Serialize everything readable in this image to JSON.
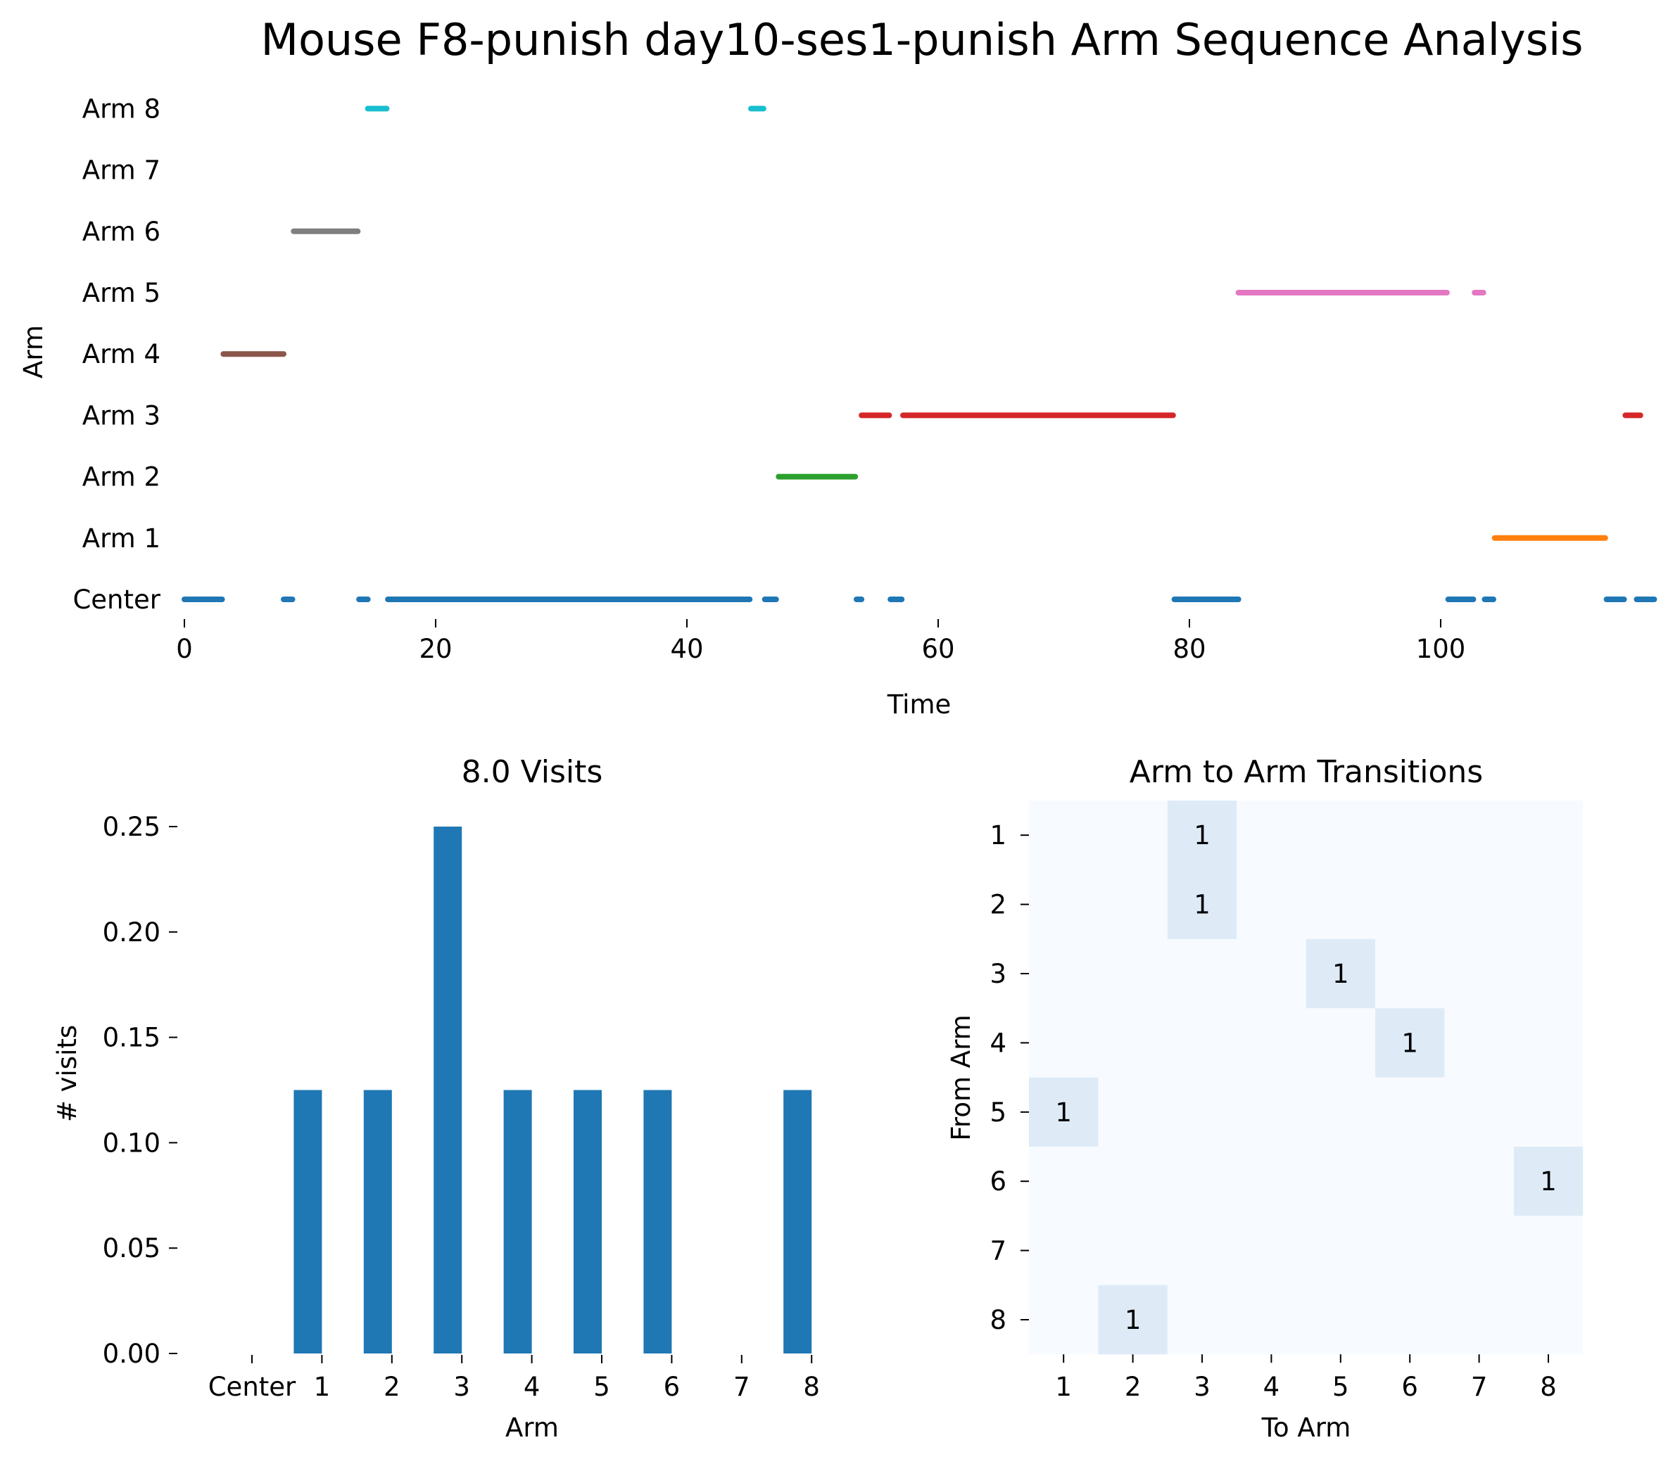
{
  "page_title": "Mouse F8-punish day10-ses1-punish Arm Sequence Analysis",
  "chart_data": [
    {
      "type": "line",
      "name": "arm-sequence-timeline",
      "xlabel": "Time",
      "ylabel": "Arm",
      "xlim": [
        0,
        117
      ],
      "xticks": [
        0,
        20,
        40,
        60,
        80,
        100
      ],
      "categories": [
        "Center",
        "Arm 1",
        "Arm 2",
        "Arm 3",
        "Arm 4",
        "Arm 5",
        "Arm 6",
        "Arm 7",
        "Arm 8"
      ],
      "grid": false,
      "series": [
        {
          "arm": "Center",
          "color": "#1f77b4",
          "segments": [
            [
              0,
              3
            ],
            [
              7.9,
              8.6
            ],
            [
              13.9,
              14.6
            ],
            [
              16.2,
              45
            ],
            [
              46.2,
              47.1
            ],
            [
              53.5,
              53.9
            ],
            [
              56.2,
              57.1
            ],
            [
              78.8,
              83.9
            ],
            [
              100.6,
              102.6
            ],
            [
              103.5,
              104.2
            ],
            [
              113.2,
              114.6
            ],
            [
              115.6,
              117
            ]
          ]
        },
        {
          "arm": "Arm 1",
          "color": "#ff7f0e",
          "segments": [
            [
              104.3,
              113.1
            ]
          ]
        },
        {
          "arm": "Arm 2",
          "color": "#2ca02c",
          "segments": [
            [
              47.3,
              53.4
            ]
          ]
        },
        {
          "arm": "Arm 3",
          "color": "#d62728",
          "segments": [
            [
              53.9,
              56.1
            ],
            [
              57.2,
              78.7
            ],
            [
              114.7,
              115.9
            ]
          ]
        },
        {
          "arm": "Arm 4",
          "color": "#8c564b",
          "segments": [
            [
              3.1,
              7.9
            ]
          ]
        },
        {
          "arm": "Arm 5",
          "color": "#e377c2",
          "segments": [
            [
              83.9,
              100.5
            ],
            [
              102.7,
              103.4
            ]
          ]
        },
        {
          "arm": "Arm 6",
          "color": "#7f7f7f",
          "segments": [
            [
              8.7,
              13.8
            ]
          ]
        },
        {
          "arm": "Arm 7",
          "color": "#bcbd22",
          "segments": []
        },
        {
          "arm": "Arm 8",
          "color": "#17becf",
          "segments": [
            [
              14.6,
              16.1
            ],
            [
              45.1,
              46.1
            ]
          ]
        }
      ]
    },
    {
      "type": "bar",
      "name": "visits-histogram",
      "title": "8.0 Visits",
      "xlabel": "Arm",
      "ylabel": "# visits",
      "categories": [
        "Center",
        "1",
        "2",
        "3",
        "4",
        "5",
        "6",
        "7",
        "8"
      ],
      "values": [
        0,
        0.125,
        0.125,
        0.25,
        0.125,
        0.125,
        0.125,
        0,
        0.125
      ],
      "ylim": [
        0,
        0.26
      ],
      "yticks": [
        "0.00",
        "0.05",
        "0.10",
        "0.15",
        "0.20",
        "0.25"
      ],
      "color": "#1f77b4",
      "grid": false
    },
    {
      "type": "heatmap",
      "name": "transition-matrix",
      "title": "Arm to Arm Transitions",
      "xlabel": "To Arm",
      "ylabel": "From Arm",
      "x_categories": [
        "1",
        "2",
        "3",
        "4",
        "5",
        "6",
        "7",
        "8"
      ],
      "y_categories": [
        "1",
        "2",
        "3",
        "4",
        "5",
        "6",
        "7",
        "8"
      ],
      "base_color": "#f7fbff",
      "filled_color": "#deebf7",
      "cells": [
        {
          "from": "1",
          "to": "3",
          "value": 1
        },
        {
          "from": "2",
          "to": "3",
          "value": 1
        },
        {
          "from": "3",
          "to": "5",
          "value": 1
        },
        {
          "from": "4",
          "to": "6",
          "value": 1
        },
        {
          "from": "5",
          "to": "1",
          "value": 1
        },
        {
          "from": "6",
          "to": "8",
          "value": 1
        },
        {
          "from": "8",
          "to": "2",
          "value": 1
        }
      ]
    }
  ]
}
